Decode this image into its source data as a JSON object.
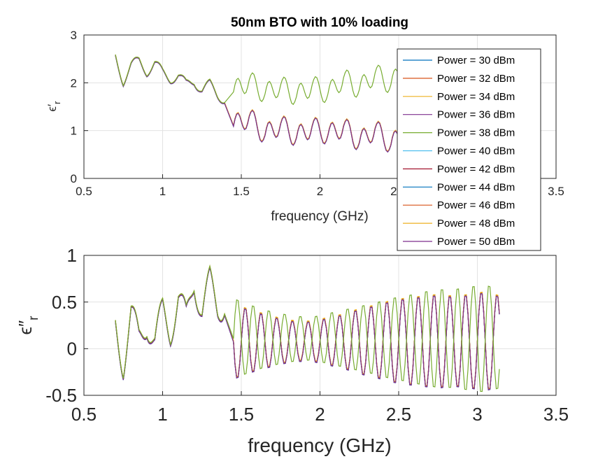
{
  "chart_data": [
    {
      "type": "line",
      "title": "50nm BTO with 10% loading",
      "xlabel": "frequency (GHz)",
      "ylabel": "ϵ′r",
      "ylabel_main": "ϵ′",
      "ylabel_sub": "r",
      "xlim": [
        0.5,
        3.5
      ],
      "ylim": [
        0,
        3
      ],
      "xticks": [
        "0.5",
        "1",
        "1.5",
        "2",
        "2.5",
        "3",
        "3.5"
      ],
      "yticks": [
        "0",
        "1",
        "2",
        "3"
      ],
      "grid": true,
      "legend_position": "right",
      "legend": [
        "Power = 30 dBm",
        "Power = 32 dBm",
        "Power = 34 dBm",
        "Power = 36 dBm",
        "Power = 38 dBm",
        "Power = 40 dBm",
        "Power = 42 dBm",
        "Power = 44 dBm",
        "Power = 46 dBm",
        "Power = 48 dBm",
        "Power = 50 dBm"
      ],
      "series_colors": [
        "#0072BD",
        "#D95319",
        "#EDB120",
        "#7E2F8E",
        "#77AC30",
        "#4DBEEE",
        "#A2142F",
        "#0072BD",
        "#D95319",
        "#EDB120",
        "#7E2F8E"
      ],
      "x_range": [
        0.7,
        3.2
      ],
      "shared_trace": {
        "x": [
          0.7,
          0.75,
          0.8,
          0.85,
          0.9,
          0.95,
          1.0,
          1.05,
          1.1,
          1.15,
          1.2,
          1.25,
          1.3,
          1.35,
          1.4
        ],
        "y": [
          2.55,
          2.05,
          2.35,
          2.45,
          2.25,
          2.4,
          2.2,
          2.1,
          2.15,
          1.95,
          2.05,
          1.85,
          1.95,
          1.75,
          1.65
        ]
      },
      "branch_high": {
        "series": [
          "Power = 38 dBm"
        ],
        "x": [
          1.45,
          1.55,
          1.65,
          1.75,
          1.85,
          1.95,
          2.05,
          2.15,
          2.25,
          2.35,
          2.45,
          2.55,
          2.65,
          2.75,
          2.85,
          2.95,
          3.05,
          3.15
        ],
        "y": [
          1.8,
          2.05,
          1.75,
          1.95,
          1.7,
          1.95,
          1.75,
          2.1,
          1.85,
          2.2,
          1.95,
          2.35,
          2.0,
          2.3,
          2.0,
          2.25,
          1.95,
          2.25
        ]
      },
      "branch_low": {
        "x": [
          1.45,
          1.55,
          1.65,
          1.75,
          1.85,
          1.95,
          2.05,
          2.15,
          2.25,
          2.35,
          2.45,
          2.55,
          2.65,
          2.75,
          2.85,
          2.95,
          3.05,
          3.15
        ],
        "y": [
          1.1,
          1.3,
          0.9,
          1.15,
          0.85,
          1.1,
          0.9,
          1.1,
          0.75,
          1.05,
          0.7,
          1.0,
          0.65,
          0.95,
          0.55,
          0.9,
          0.5,
          0.8
        ]
      }
    },
    {
      "type": "line",
      "title": "",
      "xlabel": "frequency (GHz)",
      "ylabel": "ϵ″r",
      "ylabel_main": "ϵ″",
      "ylabel_sub": "r",
      "xlim": [
        0.5,
        3.5
      ],
      "ylim": [
        -0.5,
        1
      ],
      "xticks": [
        "0.5",
        "1",
        "1.5",
        "2",
        "2.5",
        "3",
        "3.5"
      ],
      "yticks": [
        "-0.5",
        "0",
        "0.5",
        "1"
      ],
      "grid": true,
      "shared_trace": {
        "x": [
          0.7,
          0.75,
          0.8,
          0.85,
          0.9,
          0.95,
          1.0,
          1.05,
          1.1,
          1.15,
          1.2,
          1.25,
          1.3,
          1.35,
          1.4
        ],
        "y": [
          0.25,
          -0.15,
          0.35,
          0.1,
          0.3,
          0.05,
          0.4,
          0.2,
          0.55,
          0.3,
          0.75,
          0.4,
          0.7,
          0.45,
          0.5
        ]
      },
      "branch_high": {
        "series": [
          "Power = 38 dBm"
        ],
        "x": [
          1.45,
          1.55,
          1.65,
          1.75,
          1.85,
          1.95,
          2.05,
          2.15,
          2.25,
          2.35,
          2.45,
          2.55,
          2.65,
          2.75,
          2.85,
          2.95,
          3.05,
          3.15
        ],
        "amp": [
          0.45,
          0.38,
          0.32,
          0.28,
          0.25,
          0.24,
          0.28,
          0.32,
          0.36,
          0.4,
          0.45,
          0.48,
          0.52,
          0.55,
          0.55,
          0.58,
          0.6,
          0.55
        ],
        "center": 0.1
      },
      "branch_low": {
        "x": [
          1.45,
          1.55,
          1.65,
          1.75,
          1.85,
          1.95,
          2.05,
          2.15,
          2.25,
          2.35,
          2.45,
          2.55,
          2.65,
          2.75,
          2.85,
          2.95,
          3.05,
          3.15
        ],
        "amp": [
          0.42,
          0.35,
          0.3,
          0.25,
          0.22,
          0.22,
          0.26,
          0.3,
          0.36,
          0.4,
          0.45,
          0.48,
          0.5,
          0.52,
          0.5,
          0.52,
          0.55,
          0.5
        ],
        "center": 0.08
      }
    }
  ]
}
